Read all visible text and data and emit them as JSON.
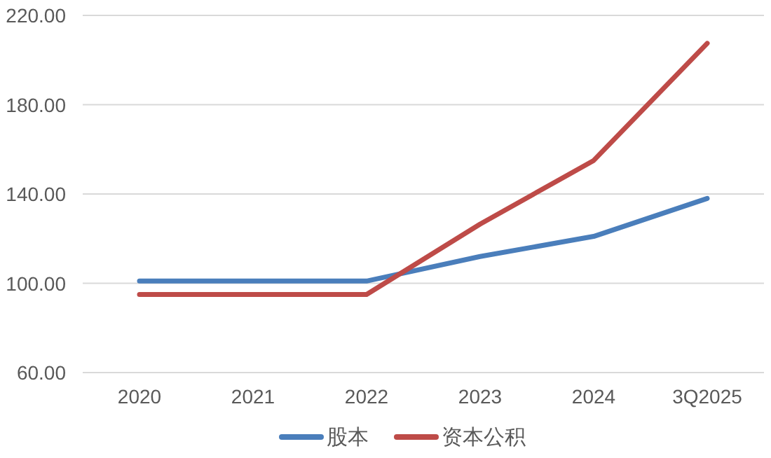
{
  "chart_data": {
    "type": "line",
    "categories": [
      "2020",
      "2021",
      "2022",
      "2023",
      "2024",
      "3Q2025"
    ],
    "series": [
      {
        "name": "股本",
        "color": "#4a7ebb",
        "values": [
          101,
          101,
          101,
          112,
          121,
          138
        ]
      },
      {
        "name": "资本公积",
        "color": "#be4b48",
        "values": [
          95,
          95,
          95,
          126.5,
          155,
          207.5
        ]
      }
    ],
    "ylim": [
      60,
      220
    ],
    "yticks": [
      {
        "value": 60,
        "label": "60.00"
      },
      {
        "value": 100,
        "label": "100.00"
      },
      {
        "value": 140,
        "label": "140.00"
      },
      {
        "value": 180,
        "label": "180.00"
      },
      {
        "value": 220,
        "label": "220.00"
      }
    ],
    "grid": "y",
    "legend": "bottom",
    "marker": "none",
    "line_style": "solid"
  }
}
